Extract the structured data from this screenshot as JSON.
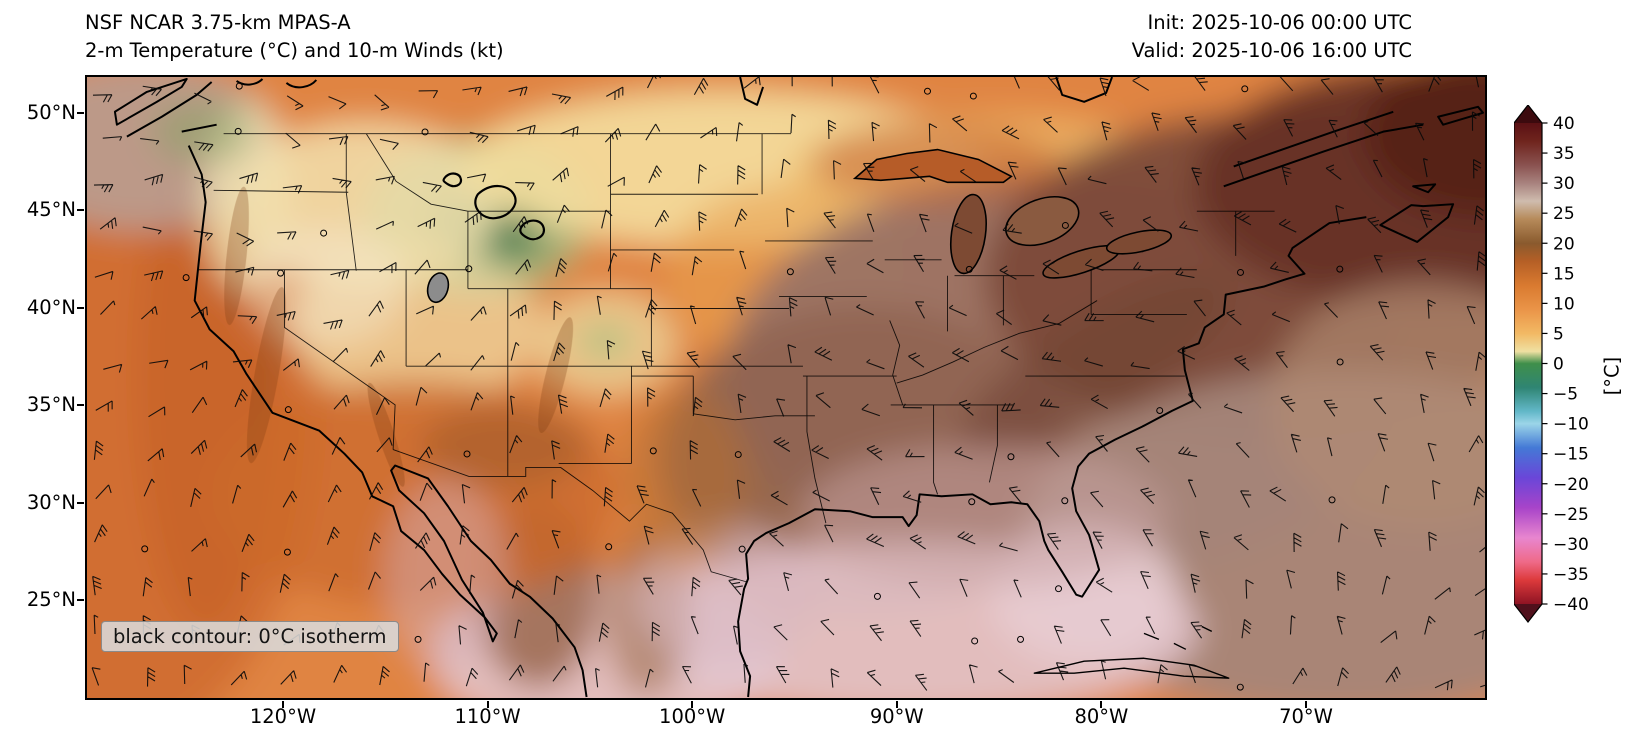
{
  "header": {
    "line1": "NSF NCAR 3.75-km MPAS-A",
    "line2": "2-m Temperature (°C) and 10-m Winds (kt)",
    "init": "Init: 2025-10-06 00:00 UTC",
    "valid": "Valid: 2025-10-06 16:00 UTC"
  },
  "axes": {
    "lat_ticks": [
      "50°N",
      "45°N",
      "40°N",
      "35°N",
      "30°N",
      "25°N"
    ],
    "lon_ticks": [
      "120°W",
      "110°W",
      "100°W",
      "90°W",
      "80°W",
      "70°W"
    ]
  },
  "map": {
    "annotation": "black contour: 0°C isotherm",
    "field": "2-m temperature shading with 10-m wind barbs over CONUS, adjacent oceans, southern Canada and northern Mexico"
  },
  "colorbar": {
    "unit_label": "[°C]",
    "min": -40,
    "max": 40,
    "extend": "both",
    "tick_labels": [
      "40",
      "35",
      "30",
      "25",
      "20",
      "15",
      "10",
      "5",
      "0",
      "−5",
      "−10",
      "−15",
      "−20",
      "−25",
      "−30",
      "−35",
      "−40"
    ],
    "stops": [
      {
        "v": 40,
        "c": "#5a1014"
      },
      {
        "v": 37,
        "c": "#6f241d"
      },
      {
        "v": 33,
        "c": "#8a5250"
      },
      {
        "v": 30,
        "c": "#a8827e"
      },
      {
        "v": 27,
        "c": "#cfbcae"
      },
      {
        "v": 24,
        "c": "#b68a5a"
      },
      {
        "v": 20,
        "c": "#8a5a2e"
      },
      {
        "v": 17,
        "c": "#b55f26"
      },
      {
        "v": 13,
        "c": "#d97a30"
      },
      {
        "v": 9,
        "c": "#ea9448"
      },
      {
        "v": 5,
        "c": "#f2b964"
      },
      {
        "v": 2,
        "c": "#efe0a2"
      },
      {
        "v": 0,
        "c": "#3f8f4a"
      },
      {
        "v": -4,
        "c": "#2f8573"
      },
      {
        "v": -8,
        "c": "#63b8c9"
      },
      {
        "v": -10,
        "c": "#9bd5e8"
      },
      {
        "v": -14,
        "c": "#4479d6"
      },
      {
        "v": -19,
        "c": "#6a46d8"
      },
      {
        "v": -24,
        "c": "#a844c9"
      },
      {
        "v": -29,
        "c": "#e886cf"
      },
      {
        "v": -33,
        "c": "#ef6a88"
      },
      {
        "v": -36,
        "c": "#dd3a3c"
      },
      {
        "v": -40,
        "c": "#8f1424"
      }
    ],
    "extend_colors": {
      "over": "#3c0a0e",
      "under": "#50101c"
    }
  }
}
